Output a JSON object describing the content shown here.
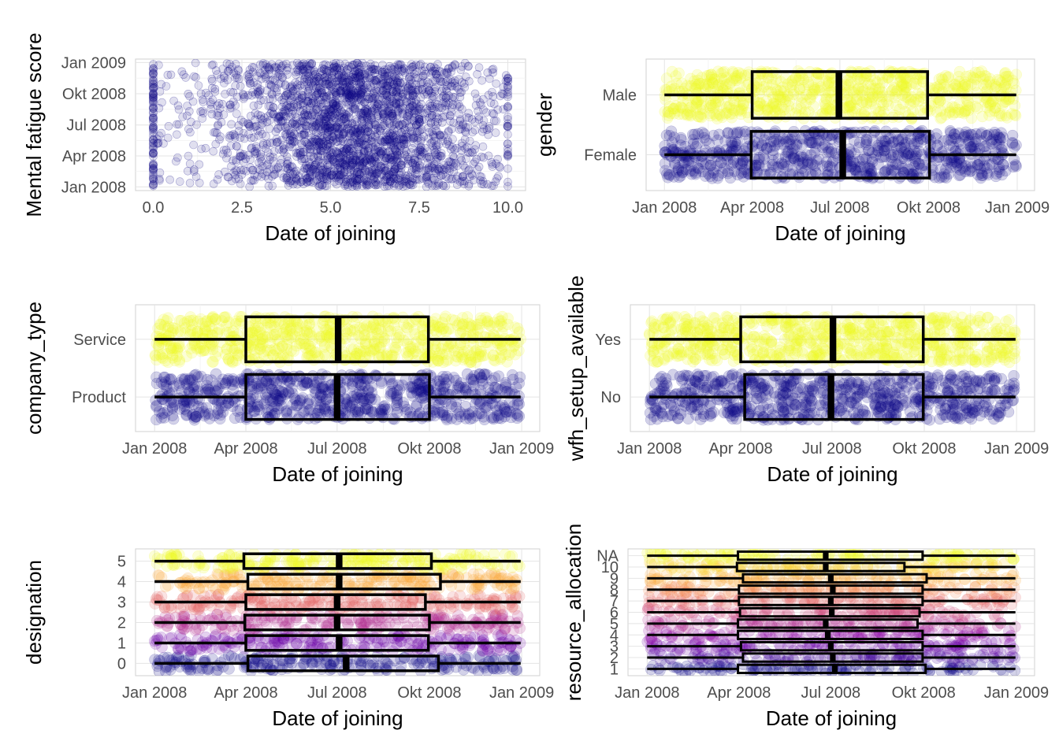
{
  "chart_data": [
    {
      "id": "fatigue",
      "type": "scatter",
      "xlabel": "Date of joining",
      "ylabel": "Mental fatigue score",
      "xlim": [
        -0.5,
        10.5
      ],
      "x_ticks": [
        {
          "value": 0,
          "label": "0.0"
        },
        {
          "value": 2.5,
          "label": "2.5"
        },
        {
          "value": 5,
          "label": "5.0"
        },
        {
          "value": 7.5,
          "label": "7.5"
        },
        {
          "value": 10,
          "label": "10.0"
        }
      ],
      "ylim": [
        "2007-12-21",
        "2009-01-11"
      ],
      "y_ticks": [
        {
          "value": "2008-01-01",
          "label": "Jan 2008"
        },
        {
          "value": "2008-04-01",
          "label": "Apr 2008"
        },
        {
          "value": "2008-07-01",
          "label": "Jul 2008"
        },
        {
          "value": "2008-10-01",
          "label": "Okt 2008"
        },
        {
          "value": "2009-01-01",
          "label": "Jan 2009"
        }
      ],
      "point_color": "#0d0887",
      "x_distribution": {
        "min": 0,
        "max": 10,
        "peak": 5.8,
        "spread": 1.9
      },
      "y_range": [
        "2008-01-01",
        "2008-12-31"
      ],
      "grid": true
    },
    {
      "id": "gender",
      "type": "box",
      "xlabel": "Date of joining",
      "ylabel": "gender",
      "categories": [
        "Female",
        "Male"
      ],
      "colors": [
        "#0d0887",
        "#f0f921"
      ],
      "x_ticks": [
        {
          "value": "2008-01-01",
          "label": "Jan 2008"
        },
        {
          "value": "2008-04-01",
          "label": "Apr 2008"
        },
        {
          "value": "2008-07-01",
          "label": "Jul 2008"
        },
        {
          "value": "2008-10-01",
          "label": "Okt 2008"
        },
        {
          "value": "2009-01-01",
          "label": "Jan 2009"
        }
      ],
      "xlim": [
        "2007-12-13",
        "2009-01-19"
      ],
      "boxes": [
        {
          "category": "Female",
          "min": "2008-01-01",
          "q1": "2008-03-31",
          "median": "2008-07-04",
          "q3": "2008-10-02",
          "max": "2008-12-31"
        },
        {
          "category": "Male",
          "min": "2008-01-01",
          "q1": "2008-04-01",
          "median": "2008-06-30",
          "q3": "2008-09-30",
          "max": "2008-12-31"
        }
      ],
      "grid": true
    },
    {
      "id": "company",
      "type": "box",
      "xlabel": "Date of joining",
      "ylabel": "company_type",
      "categories": [
        "Product",
        "Service"
      ],
      "colors": [
        "#0d0887",
        "#f0f921"
      ],
      "x_ticks": [
        {
          "value": "2008-01-01",
          "label": "Jan 2008"
        },
        {
          "value": "2008-04-01",
          "label": "Apr 2008"
        },
        {
          "value": "2008-07-01",
          "label": "Jul 2008"
        },
        {
          "value": "2008-10-01",
          "label": "Okt 2008"
        },
        {
          "value": "2009-01-01",
          "label": "Jan 2009"
        }
      ],
      "xlim": [
        "2007-12-13",
        "2009-01-19"
      ],
      "boxes": [
        {
          "category": "Product",
          "min": "2008-01-01",
          "q1": "2008-04-01",
          "median": "2008-07-01",
          "q3": "2008-10-01",
          "max": "2008-12-31"
        },
        {
          "category": "Service",
          "min": "2008-01-01",
          "q1": "2008-04-01",
          "median": "2008-07-02",
          "q3": "2008-09-30",
          "max": "2008-12-31"
        }
      ],
      "grid": true
    },
    {
      "id": "wfh",
      "type": "box",
      "xlabel": "Date of joining",
      "ylabel": "wfh_setup_available",
      "categories": [
        "No",
        "Yes"
      ],
      "colors": [
        "#0d0887",
        "#f0f921"
      ],
      "x_ticks": [
        {
          "value": "2008-01-01",
          "label": "Jan 2008"
        },
        {
          "value": "2008-04-01",
          "label": "Apr 2008"
        },
        {
          "value": "2008-07-01",
          "label": "Jul 2008"
        },
        {
          "value": "2008-10-01",
          "label": "Okt 2008"
        },
        {
          "value": "2009-01-01",
          "label": "Jan 2009"
        }
      ],
      "xlim": [
        "2007-12-13",
        "2009-01-19"
      ],
      "boxes": [
        {
          "category": "No",
          "min": "2008-01-01",
          "q1": "2008-04-05",
          "median": "2008-06-30",
          "q3": "2008-09-30",
          "max": "2008-12-31"
        },
        {
          "category": "Yes",
          "min": "2008-01-01",
          "q1": "2008-04-01",
          "median": "2008-07-02",
          "q3": "2008-09-30",
          "max": "2008-12-31"
        }
      ],
      "grid": true
    },
    {
      "id": "designation",
      "type": "box",
      "xlabel": "Date of joining",
      "ylabel": "designation",
      "categories": [
        "0",
        "1",
        "2",
        "3",
        "4",
        "5"
      ],
      "colors": [
        "#0d0887",
        "#6a00a8",
        "#b12a90",
        "#e16462",
        "#fca636",
        "#f0f921"
      ],
      "x_ticks": [
        {
          "value": "2008-01-01",
          "label": "Jan 2008"
        },
        {
          "value": "2008-04-01",
          "label": "Apr 2008"
        },
        {
          "value": "2008-07-01",
          "label": "Jul 2008"
        },
        {
          "value": "2008-10-01",
          "label": "Okt 2008"
        },
        {
          "value": "2009-01-01",
          "label": "Jan 2009"
        }
      ],
      "xlim": [
        "2007-12-13",
        "2009-01-19"
      ],
      "boxes": [
        {
          "category": "0",
          "min": "2008-01-01",
          "q1": "2008-04-03",
          "median": "2008-07-10",
          "q3": "2008-10-10",
          "max": "2008-12-31"
        },
        {
          "category": "1",
          "min": "2008-01-01",
          "q1": "2008-04-01",
          "median": "2008-07-03",
          "q3": "2008-09-30",
          "max": "2008-12-31"
        },
        {
          "category": "2",
          "min": "2008-01-01",
          "q1": "2008-03-31",
          "median": "2008-07-01",
          "q3": "2008-10-01",
          "max": "2008-12-31"
        },
        {
          "category": "3",
          "min": "2008-01-01",
          "q1": "2008-04-01",
          "median": "2008-07-01",
          "q3": "2008-09-27",
          "max": "2008-12-31"
        },
        {
          "category": "4",
          "min": "2008-01-01",
          "q1": "2008-04-03",
          "median": "2008-07-03",
          "q3": "2008-10-12",
          "max": "2008-12-31"
        },
        {
          "category": "5",
          "min": "2008-01-01",
          "q1": "2008-03-30",
          "median": "2008-07-03",
          "q3": "2008-10-03",
          "max": "2008-12-31"
        }
      ],
      "grid": true
    },
    {
      "id": "resource",
      "type": "box",
      "xlabel": "Date of joining",
      "ylabel": "resource_allocation",
      "categories": [
        "1",
        "2",
        "3",
        "4",
        "5",
        "6",
        "7",
        "8",
        "9",
        "10",
        "NA"
      ],
      "colors": [
        "#0d0887",
        "#41049d",
        "#6a00a8",
        "#8f0da4",
        "#b12a90",
        "#cc4778",
        "#e16462",
        "#f2844b",
        "#fca636",
        "#fcce25",
        "#f0f921"
      ],
      "x_ticks": [
        {
          "value": "2008-01-01",
          "label": "Jan 2008"
        },
        {
          "value": "2008-04-01",
          "label": "Apr 2008"
        },
        {
          "value": "2008-07-01",
          "label": "Jul 2008"
        },
        {
          "value": "2008-10-01",
          "label": "Okt 2008"
        },
        {
          "value": "2009-01-01",
          "label": "Jan 2009"
        }
      ],
      "xlim": [
        "2007-12-13",
        "2009-01-19"
      ],
      "boxes": [
        {
          "category": "1",
          "min": "2008-01-01",
          "q1": "2008-03-31",
          "median": "2008-07-05",
          "q3": "2008-10-03",
          "max": "2008-12-31"
        },
        {
          "category": "2",
          "min": "2008-01-01",
          "q1": "2008-04-05",
          "median": "2008-07-03",
          "q3": "2008-09-30",
          "max": "2008-12-31"
        },
        {
          "category": "3",
          "min": "2008-01-01",
          "q1": "2008-04-03",
          "median": "2008-07-01",
          "q3": "2008-09-30",
          "max": "2008-12-31"
        },
        {
          "category": "4",
          "min": "2008-01-01",
          "q1": "2008-03-31",
          "median": "2008-06-28",
          "q3": "2008-09-30",
          "max": "2008-12-31"
        },
        {
          "category": "5",
          "min": "2008-01-01",
          "q1": "2008-03-31",
          "median": "2008-06-26",
          "q3": "2008-09-25",
          "max": "2008-12-31"
        },
        {
          "category": "6",
          "min": "2008-01-01",
          "q1": "2008-04-02",
          "median": "2008-07-02",
          "q3": "2008-09-27",
          "max": "2008-12-31"
        },
        {
          "category": "7",
          "min": "2008-01-01",
          "q1": "2008-04-01",
          "median": "2008-07-01",
          "q3": "2008-09-30",
          "max": "2008-12-31"
        },
        {
          "category": "8",
          "min": "2008-01-01",
          "q1": "2008-04-01",
          "median": "2008-07-03",
          "q3": "2008-09-30",
          "max": "2008-12-31"
        },
        {
          "category": "9",
          "min": "2008-01-01",
          "q1": "2008-04-05",
          "median": "2008-07-01",
          "q3": "2008-10-04",
          "max": "2008-12-31"
        },
        {
          "category": "10",
          "min": "2008-01-01",
          "q1": "2008-03-30",
          "median": "2008-06-26",
          "q3": "2008-09-12",
          "max": "2008-12-31"
        },
        {
          "category": "NA",
          "min": "2008-01-01",
          "q1": "2008-03-31",
          "median": "2008-06-26",
          "q3": "2008-09-30",
          "max": "2008-12-31"
        }
      ],
      "grid": true
    }
  ]
}
